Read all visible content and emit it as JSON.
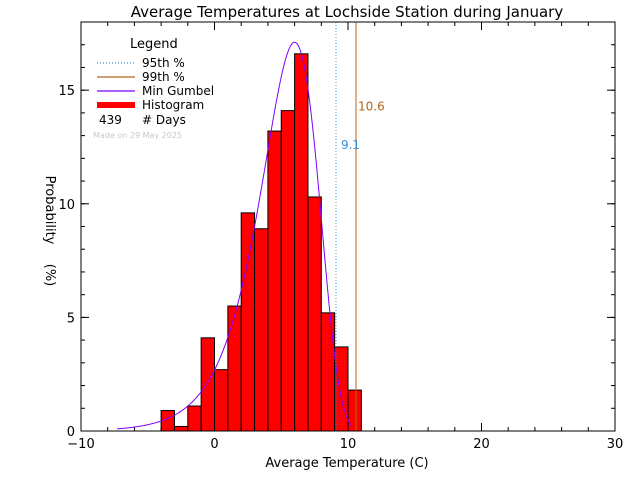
{
  "chart_data": {
    "type": "bar",
    "title": "Average Temperatures at Lochside Station during January",
    "xlabel": "Average Temperature (C)",
    "ylabel": "Probability",
    "ylabel_unit": "(%)",
    "xlim": [
      -10,
      30
    ],
    "ylim": [
      0,
      18
    ],
    "x_ticks": [
      -10,
      0,
      10,
      20,
      30
    ],
    "y_ticks": [
      0,
      5,
      10,
      15
    ],
    "bin_width": 1,
    "histogram": {
      "color": "#ff0000",
      "bins": [
        {
          "x": -4,
          "value": 0.9
        },
        {
          "x": -3,
          "value": 0.2
        },
        {
          "x": -2,
          "value": 1.1
        },
        {
          "x": -1,
          "value": 4.1
        },
        {
          "x": 0,
          "value": 2.7
        },
        {
          "x": 1,
          "value": 5.5
        },
        {
          "x": 2,
          "value": 9.6
        },
        {
          "x": 3,
          "value": 8.9
        },
        {
          "x": 4,
          "value": 13.2
        },
        {
          "x": 5,
          "value": 14.1
        },
        {
          "x": 6,
          "value": 16.6
        },
        {
          "x": 7,
          "value": 10.3
        },
        {
          "x": 8,
          "value": 5.2
        },
        {
          "x": 9,
          "value": 3.7
        },
        {
          "x": 10,
          "value": 1.8
        }
      ]
    },
    "gumbel": {
      "color": "#8000ff",
      "mode": 6.0,
      "scale": 2.15,
      "x_range": [
        -7.3,
        10.3
      ]
    },
    "percentile_95": {
      "value": 9.1,
      "label": "9.1",
      "color": "#3b8fd6"
    },
    "percentile_99": {
      "value": 10.6,
      "label": "10.6",
      "color": "#b5651d"
    },
    "legend": {
      "title": "Legend",
      "placement": "top-left",
      "entries": [
        {
          "label": "95th %",
          "style": "dotted",
          "color": "#3b8fd6"
        },
        {
          "label": "99th %",
          "style": "solid",
          "color": "#b5651d"
        },
        {
          "label": "Min Gumbel",
          "style": "solid",
          "color": "#8000ff"
        },
        {
          "label": "Histogram",
          "style": "thick",
          "color": "#ff0000"
        }
      ],
      "days_count": "439",
      "days_label": "# Days",
      "made_on": "Made on 29 May 2025"
    }
  }
}
